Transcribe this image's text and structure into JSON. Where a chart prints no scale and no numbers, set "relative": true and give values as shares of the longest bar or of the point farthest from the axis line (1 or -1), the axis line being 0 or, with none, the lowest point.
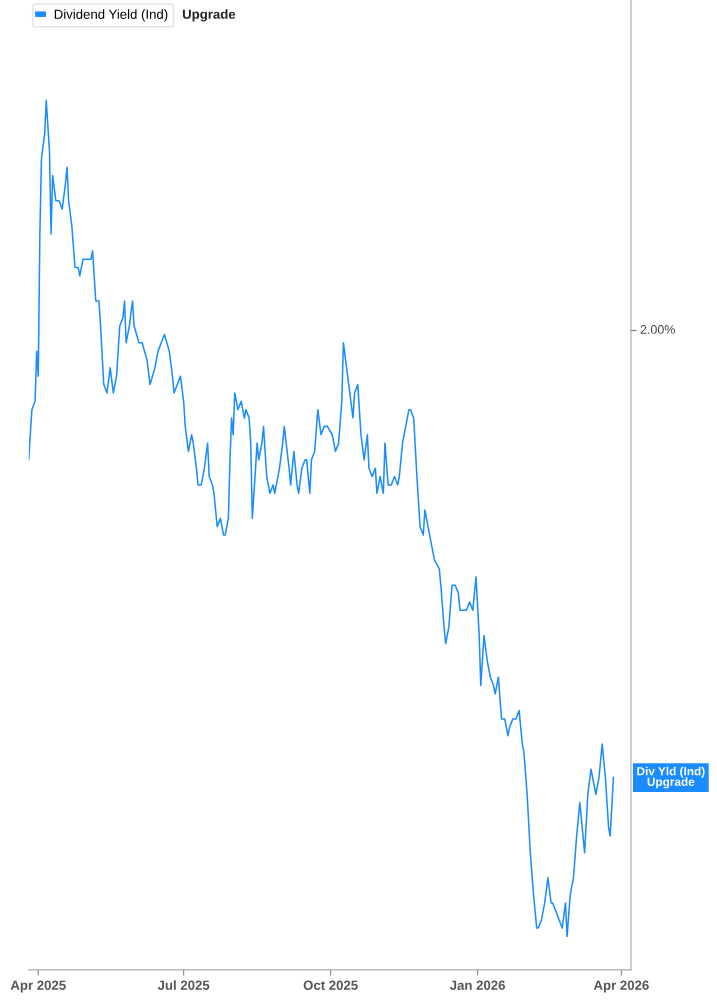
{
  "chart_data": {
    "type": "line",
    "relative": true,
    "legend": "top left",
    "grid": false,
    "marker": "none",
    "line_style": "solid",
    "xlim": [
      "2025-03-26",
      "2026-04-07"
    ],
    "xticks": [
      {
        "value": "2025-04-01",
        "label": "Apr 2025"
      },
      {
        "value": "2025-07-01",
        "label": "Jul 2025"
      },
      {
        "value": "2025-10-01",
        "label": "Oct 2025"
      },
      {
        "value": "2026-01-01",
        "label": "Jan 2026"
      },
      {
        "value": "2026-04-01",
        "label": "Apr 2026"
      }
    ],
    "annotations": [
      "2.00%",
      "Upgrade",
      "Div Yld (Ind)\nUpgrade"
    ],
    "series": [
      {
        "name": "Dividend Yield (Ind)",
        "color": "#1a8cff",
        "x": [
          "2025-03-26",
          "2025-03-28",
          "2025-03-30",
          "2025-03-31",
          "2025-04-01",
          "2025-04-02",
          "2025-04-03",
          "2025-04-05",
          "2025-04-06",
          "2025-04-08",
          "2025-04-09",
          "2025-04-10",
          "2025-04-12",
          "2025-04-14",
          "2025-04-16",
          "2025-04-18",
          "2025-04-19",
          "2025-04-20",
          "2025-04-22",
          "2025-04-24",
          "2025-04-26",
          "2025-04-27",
          "2025-04-29",
          "2025-05-01",
          "2025-05-04",
          "2025-05-05",
          "2025-05-07",
          "2025-05-09",
          "2025-05-10",
          "2025-05-12",
          "2025-05-14",
          "2025-05-16",
          "2025-05-18",
          "2025-05-20",
          "2025-05-22",
          "2025-05-24",
          "2025-05-25",
          "2025-05-26",
          "2025-05-28",
          "2025-05-30",
          "2025-05-31",
          "2025-06-03",
          "2025-06-05",
          "2025-06-08",
          "2025-06-10",
          "2025-06-13",
          "2025-06-15",
          "2025-06-17",
          "2025-06-19",
          "2025-06-22",
          "2025-06-24",
          "2025-06-25",
          "2025-06-27",
          "2025-06-29",
          "2025-07-01",
          "2025-07-02",
          "2025-07-04",
          "2025-07-06",
          "2025-07-07",
          "2025-07-09",
          "2025-07-10",
          "2025-07-12",
          "2025-07-14",
          "2025-07-16",
          "2025-07-17",
          "2025-07-19",
          "2025-07-20",
          "2025-07-22",
          "2025-07-24",
          "2025-07-26",
          "2025-07-27",
          "2025-07-29",
          "2025-07-30",
          "2025-07-31",
          "2025-08-01",
          "2025-08-02",
          "2025-08-04",
          "2025-08-06",
          "2025-08-08",
          "2025-08-09",
          "2025-08-11",
          "2025-08-12",
          "2025-08-13",
          "2025-08-15",
          "2025-08-16",
          "2025-08-17",
          "2025-08-19",
          "2025-08-20",
          "2025-08-22",
          "2025-08-24",
          "2025-08-26",
          "2025-08-27",
          "2025-08-30",
          "2025-09-01",
          "2025-09-02",
          "2025-09-05",
          "2025-09-06",
          "2025-09-08",
          "2025-09-10",
          "2025-09-11",
          "2025-09-13",
          "2025-09-15",
          "2025-09-16",
          "2025-09-18",
          "2025-09-19",
          "2025-09-21",
          "2025-09-23",
          "2025-09-25",
          "2025-09-27",
          "2025-09-29",
          "2025-10-02",
          "2025-10-04",
          "2025-10-06",
          "2025-10-08",
          "2025-10-09",
          "2025-10-11",
          "2025-10-13",
          "2025-10-15",
          "2025-10-16",
          "2025-10-18",
          "2025-10-20",
          "2025-10-22",
          "2025-10-24",
          "2025-10-25",
          "2025-10-27",
          "2025-10-29",
          "2025-10-30",
          "2025-11-01",
          "2025-11-03",
          "2025-11-04",
          "2025-11-06",
          "2025-11-08",
          "2025-11-10",
          "2025-11-12",
          "2025-11-13",
          "2025-11-15",
          "2025-11-17",
          "2025-11-19",
          "2025-11-20",
          "2025-11-22",
          "2025-11-24",
          "2025-11-26",
          "2025-11-28",
          "2025-11-29",
          "2025-12-02",
          "2025-12-04",
          "2025-12-05",
          "2025-12-08",
          "2025-12-09",
          "2025-12-11",
          "2025-12-12",
          "2025-12-14",
          "2025-12-16",
          "2025-12-18",
          "2025-12-20",
          "2025-12-21",
          "2025-12-23",
          "2025-12-25",
          "2025-12-27",
          "2025-12-29",
          "2025-12-31",
          "2026-01-02",
          "2026-01-03",
          "2026-01-05",
          "2026-01-07",
          "2026-01-09",
          "2026-01-11",
          "2026-01-12",
          "2026-01-14",
          "2026-01-16",
          "2026-01-18",
          "2026-01-20",
          "2026-01-21",
          "2026-01-23",
          "2026-01-25",
          "2026-01-27",
          "2026-01-29",
          "2026-01-30",
          "2026-02-01",
          "2026-02-03",
          "2026-02-05",
          "2026-02-07",
          "2026-02-08",
          "2026-02-10",
          "2026-02-12",
          "2026-02-14",
          "2026-02-16",
          "2026-02-17",
          "2026-02-19",
          "2026-02-21",
          "2026-02-23",
          "2026-02-25",
          "2026-02-26",
          "2026-02-28",
          "2026-03-02",
          "2026-03-04",
          "2026-03-06",
          "2026-03-07",
          "2026-03-09",
          "2026-03-11",
          "2026-03-13",
          "2026-03-15",
          "2026-03-16",
          "2026-03-18",
          "2026-03-20",
          "2026-03-22",
          "2026-03-24",
          "2026-03-25",
          "2026-03-27"
        ],
        "values": [
          0.57,
          0.63,
          0.64,
          0.7,
          0.67,
          0.84,
          0.93,
          0.96,
          1.0,
          0.94,
          0.84,
          0.91,
          0.88,
          0.88,
          0.87,
          0.9,
          0.92,
          0.88,
          0.85,
          0.8,
          0.8,
          0.79,
          0.81,
          0.81,
          0.81,
          0.82,
          0.76,
          0.76,
          0.73,
          0.66,
          0.65,
          0.68,
          0.65,
          0.67,
          0.73,
          0.74,
          0.76,
          0.71,
          0.73,
          0.76,
          0.73,
          0.71,
          0.71,
          0.69,
          0.66,
          0.68,
          0.7,
          0.71,
          0.72,
          0.7,
          0.67,
          0.65,
          0.66,
          0.67,
          0.64,
          0.61,
          0.58,
          0.6,
          0.59,
          0.56,
          0.54,
          0.54,
          0.56,
          0.59,
          0.55,
          0.54,
          0.53,
          0.49,
          0.5,
          0.48,
          0.48,
          0.5,
          0.57,
          0.62,
          0.6,
          0.65,
          0.63,
          0.64,
          0.62,
          0.63,
          0.62,
          0.59,
          0.5,
          0.56,
          0.59,
          0.57,
          0.59,
          0.61,
          0.55,
          0.53,
          0.54,
          0.53,
          0.56,
          0.59,
          0.61,
          0.56,
          0.54,
          0.58,
          0.54,
          0.53,
          0.56,
          0.57,
          0.57,
          0.53,
          0.57,
          0.58,
          0.63,
          0.6,
          0.61,
          0.61,
          0.6,
          0.58,
          0.59,
          0.64,
          0.71,
          0.68,
          0.65,
          0.62,
          0.65,
          0.66,
          0.6,
          0.57,
          0.6,
          0.56,
          0.55,
          0.56,
          0.53,
          0.55,
          0.53,
          0.59,
          0.54,
          0.54,
          0.55,
          0.54,
          0.55,
          0.59,
          0.61,
          0.63,
          0.63,
          0.62,
          0.55,
          0.49,
          0.48,
          0.51,
          0.48,
          0.46,
          0.45,
          0.44,
          0.42,
          0.37,
          0.35,
          0.37,
          0.42,
          0.42,
          0.41,
          0.39,
          0.39,
          0.39,
          0.4,
          0.39,
          0.43,
          0.36,
          0.3,
          0.36,
          0.33,
          0.31,
          0.3,
          0.29,
          0.31,
          0.26,
          0.26,
          0.24,
          0.25,
          0.26,
          0.26,
          0.27,
          0.23,
          0.22,
          0.17,
          0.1,
          0.05,
          0.01,
          0.01,
          0.02,
          0.04,
          0.07,
          0.04,
          0.04,
          0.03,
          0.02,
          0.01,
          0.04,
          0.0,
          0.05,
          0.07,
          0.12,
          0.16,
          0.14,
          0.1,
          0.17,
          0.2,
          0.18,
          0.17,
          0.19,
          0.23,
          0.19,
          0.13,
          0.12,
          0.19
        ]
      }
    ]
  }
}
